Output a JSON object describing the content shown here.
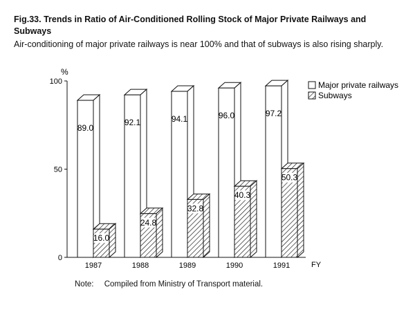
{
  "header": {
    "title": "Fig.33. Trends in Ratio of Air-Conditioned Rolling Stock of Major Private Railways and Subways",
    "subtitle": "Air-conditioning of major private railways is near 100% and that of subways is also rising sharply."
  },
  "note": {
    "label": "Note:",
    "text": "Compiled from Ministry of Transport material."
  },
  "chart_data": {
    "type": "bar",
    "style": "3d-grouped",
    "categories": [
      "1987",
      "1988",
      "1989",
      "1990",
      "1991"
    ],
    "series": [
      {
        "name": "Major private railways",
        "values": [
          89.0,
          92.1,
          94.1,
          96.0,
          97.2
        ],
        "pattern": "plain"
      },
      {
        "name": "Subways",
        "values": [
          16.0,
          24.8,
          32.8,
          40.3,
          50.3
        ],
        "pattern": "hatched"
      }
    ],
    "value_labels": {
      "Major private railways": [
        "89.0",
        "92.1",
        "94.1",
        "96.0",
        "97.2"
      ],
      "Subways": [
        "16.0",
        "24.8",
        "32.8",
        "40.3",
        "50.3"
      ]
    },
    "ylim": [
      0,
      100
    ],
    "yticks": [
      "0",
      "50",
      "100"
    ],
    "ylabel": "%",
    "xlabel": "FY",
    "grid": false,
    "legend": "top-right"
  }
}
